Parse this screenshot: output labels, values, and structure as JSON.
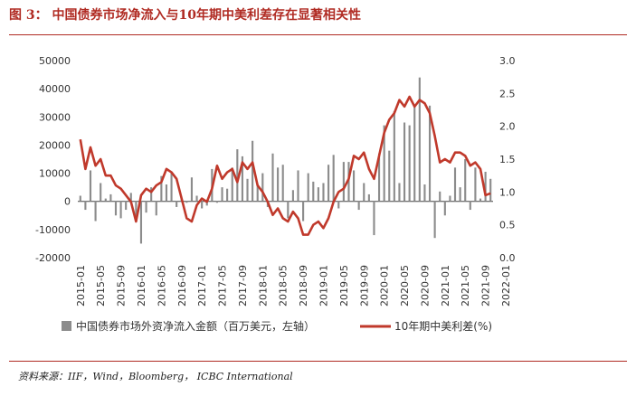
{
  "title": "图 3：  中国债券市场净流入与10年期中美利差存在显著相关性",
  "source": "资料来源：IIF，Wind，Bloomberg， ICBC International",
  "chart_data": {
    "type": "bar+line",
    "x_tick_labels": [
      "2015-01",
      "2015-05",
      "2015-09",
      "2016-01",
      "2016-05",
      "2016-09",
      "2017-01",
      "2017-05",
      "2017-09",
      "2018-01",
      "2018-05",
      "2018-09",
      "2019-01",
      "2019-05",
      "2019-09",
      "2020-01",
      "2020-05",
      "2020-09",
      "2021-01",
      "2021-05",
      "2021-09",
      "2022-01"
    ],
    "y_left_ticks": [
      "50000",
      "40000",
      "30000",
      "20000",
      "10000",
      "0",
      "-10000",
      "-20000"
    ],
    "y_left_lim": [
      -20000,
      50000
    ],
    "y_right_ticks": [
      "3.0",
      "2.5",
      "2.0",
      "1.5",
      "1.0",
      "0.5",
      "0.0"
    ],
    "y_right_lim": [
      0.0,
      3.0
    ],
    "colors": {
      "bars": "#8c8c8c",
      "line": "#c0392b",
      "title": "#b02b23"
    },
    "series": [
      {
        "name": "中国债券市场外资净流入金额（百万美元，左轴）",
        "type": "bar",
        "axis": "left",
        "values": [
          2000,
          -3000,
          11000,
          -7000,
          6500,
          1000,
          2500,
          -5000,
          -6000,
          -3000,
          3000,
          -6000,
          -15000,
          -4000,
          5000,
          -5000,
          9000,
          6000,
          10500,
          -2000,
          1000,
          -500,
          8500,
          2000,
          -2500,
          -1500,
          11500,
          -500,
          5000,
          4500,
          12000,
          18500,
          16000,
          8000,
          21500,
          6000,
          10000,
          -2000,
          17000,
          12000,
          13000,
          -6000,
          4000,
          11000,
          -7000,
          10000,
          7000,
          5000,
          6500,
          13000,
          16500,
          -2500,
          14000,
          14000,
          11000,
          -3000,
          6500,
          2500,
          -12000,
          17000,
          27000,
          18000,
          32000,
          6500,
          28000,
          27000,
          34000,
          44000,
          6000,
          34000,
          -13000,
          3500,
          -5000,
          2000,
          12000,
          5000,
          15000,
          -3000,
          12000,
          1000,
          10500,
          8000
        ],
        "monthly_from": "2015-01"
      },
      {
        "name": "10年期中美利差(%)",
        "type": "line",
        "axis": "right",
        "values": [
          1.8,
          1.35,
          1.68,
          1.4,
          1.5,
          1.25,
          1.25,
          1.1,
          1.05,
          0.95,
          0.85,
          0.55,
          0.95,
          1.05,
          1.0,
          1.1,
          1.15,
          1.35,
          1.3,
          1.2,
          0.9,
          0.6,
          0.55,
          0.8,
          0.9,
          0.85,
          1.05,
          1.4,
          1.2,
          1.3,
          1.35,
          1.15,
          1.45,
          1.35,
          1.45,
          1.1,
          1.0,
          0.85,
          0.65,
          0.75,
          0.6,
          0.55,
          0.7,
          0.6,
          0.35,
          0.35,
          0.5,
          0.55,
          0.45,
          0.6,
          0.85,
          1.0,
          1.05,
          1.2,
          1.55,
          1.5,
          1.6,
          1.35,
          1.2,
          1.55,
          1.9,
          2.1,
          2.2,
          2.4,
          2.3,
          2.45,
          2.3,
          2.4,
          2.35,
          2.2,
          1.85,
          1.45,
          1.5,
          1.45,
          1.6,
          1.6,
          1.55,
          1.4,
          1.45,
          1.35,
          0.95,
          0.98
        ],
        "monthly_from": "2015-01"
      }
    ],
    "legend_position": "bottom",
    "grid": false
  }
}
